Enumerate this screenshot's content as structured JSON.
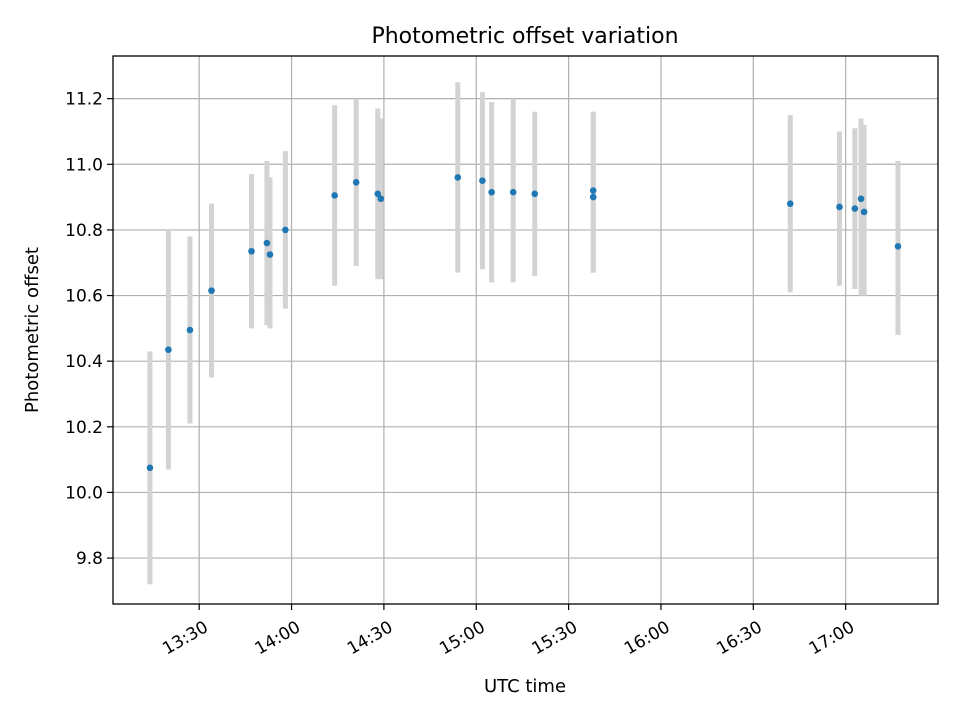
{
  "chart_data": {
    "type": "scatter",
    "title": "Photometric offset variation",
    "xlabel": "UTC time",
    "ylabel": "Photometric offset",
    "xlim": [
      "13:02",
      "17:30"
    ],
    "ylim": [
      9.66,
      11.33
    ],
    "x_ticks": [
      "13:30",
      "14:00",
      "14:30",
      "15:00",
      "15:30",
      "16:00",
      "16:30",
      "17:00"
    ],
    "y_ticks": [
      9.8,
      10.0,
      10.2,
      10.4,
      10.6,
      10.8,
      11.0,
      11.2
    ],
    "grid": true,
    "colors": {
      "points": "#1f77b4",
      "error_bars": "#d3d3d3"
    },
    "points": [
      {
        "x": "13:14",
        "y": 10.075,
        "low": 9.72,
        "high": 10.43
      },
      {
        "x": "13:20",
        "y": 10.435,
        "low": 10.07,
        "high": 10.8
      },
      {
        "x": "13:27",
        "y": 10.495,
        "low": 10.21,
        "high": 10.78
      },
      {
        "x": "13:34",
        "y": 10.615,
        "low": 10.35,
        "high": 10.88
      },
      {
        "x": "13:47",
        "y": 10.735,
        "low": 10.5,
        "high": 10.97
      },
      {
        "x": "13:52",
        "y": 10.76,
        "low": 10.51,
        "high": 11.01
      },
      {
        "x": "13:53",
        "y": 10.725,
        "low": 10.5,
        "high": 10.96
      },
      {
        "x": "13:58",
        "y": 10.8,
        "low": 10.56,
        "high": 11.04
      },
      {
        "x": "14:14",
        "y": 10.905,
        "low": 10.63,
        "high": 11.18
      },
      {
        "x": "14:21",
        "y": 10.945,
        "low": 10.69,
        "high": 11.2
      },
      {
        "x": "14:28",
        "y": 10.91,
        "low": 10.65,
        "high": 11.17
      },
      {
        "x": "14:29",
        "y": 10.895,
        "low": 10.65,
        "high": 11.14
      },
      {
        "x": "14:54",
        "y": 10.96,
        "low": 10.67,
        "high": 11.25
      },
      {
        "x": "15:02",
        "y": 10.95,
        "low": 10.68,
        "high": 11.22
      },
      {
        "x": "15:05",
        "y": 10.915,
        "low": 10.64,
        "high": 11.19
      },
      {
        "x": "15:12",
        "y": 10.915,
        "low": 10.64,
        "high": 11.2
      },
      {
        "x": "15:19",
        "y": 10.91,
        "low": 10.66,
        "high": 11.16
      },
      {
        "x": "15:38",
        "y": 10.92,
        "low": 10.67,
        "high": 11.16
      },
      {
        "x": "15:38",
        "y": 10.9,
        "low": 10.67,
        "high": 11.16
      },
      {
        "x": "16:42",
        "y": 10.88,
        "low": 10.61,
        "high": 11.15
      },
      {
        "x": "16:58",
        "y": 10.87,
        "low": 10.63,
        "high": 11.1
      },
      {
        "x": "17:03",
        "y": 10.865,
        "low": 10.62,
        "high": 11.11
      },
      {
        "x": "17:05",
        "y": 10.895,
        "low": 10.6,
        "high": 11.14
      },
      {
        "x": "17:06",
        "y": 10.855,
        "low": 10.6,
        "high": 11.12
      },
      {
        "x": "17:17",
        "y": 10.75,
        "low": 10.48,
        "high": 11.01
      }
    ]
  }
}
